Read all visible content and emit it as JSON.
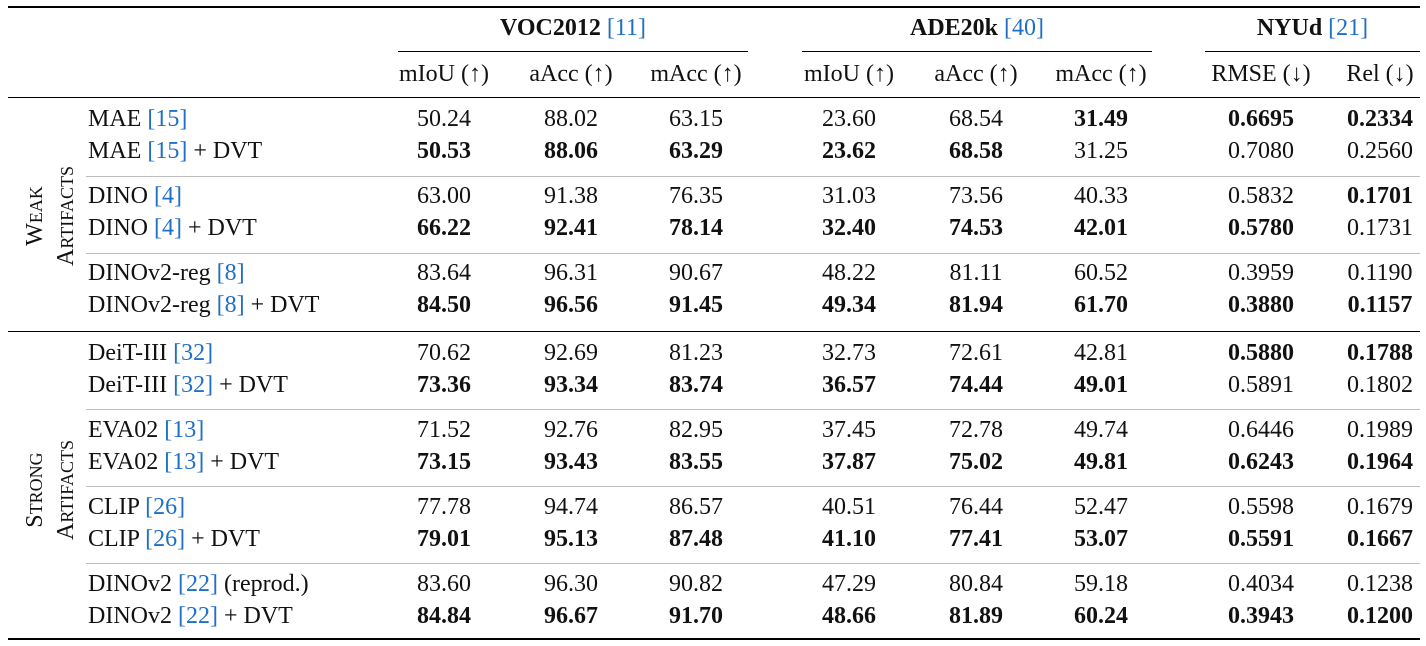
{
  "groups": [
    {
      "name": "VOC2012",
      "ref": "11"
    },
    {
      "name": "ADE20k",
      "ref": "40"
    },
    {
      "name": "NYUd",
      "ref": "21"
    }
  ],
  "columns": [
    "mIoU (↑)",
    "aAcc (↑)",
    "mAcc (↑)",
    "mIoU (↑)",
    "aAcc (↑)",
    "mAcc (↑)",
    "RMSE (↓)",
    "Rel (↓)"
  ],
  "categories": [
    {
      "first_cap": "W",
      "first_rest": "EAK",
      "second_cap": "A",
      "second_rest": "RTIFACTS"
    },
    {
      "first_cap": "S",
      "first_rest": "TRONG",
      "second_cap": "A",
      "second_rest": "RTIFACTS"
    }
  ],
  "rows": [
    {
      "name": "MAE ",
      "ref": "15",
      "suffix": "",
      "values": [
        "50.24",
        "88.02",
        "63.15",
        "23.60",
        "68.54",
        "31.49",
        "0.6695",
        "0.2334"
      ],
      "bold": [
        false,
        false,
        false,
        false,
        false,
        true,
        true,
        true
      ]
    },
    {
      "name": "MAE ",
      "ref": "15",
      "suffix": " + DVT",
      "values": [
        "50.53",
        "88.06",
        "63.29",
        "23.62",
        "68.58",
        "31.25",
        "0.7080",
        "0.2560"
      ],
      "bold": [
        true,
        true,
        true,
        true,
        true,
        false,
        false,
        false
      ]
    },
    {
      "name": "DINO ",
      "ref": "4",
      "suffix": "",
      "values": [
        "63.00",
        "91.38",
        "76.35",
        "31.03",
        "73.56",
        "40.33",
        "0.5832",
        "0.1701"
      ],
      "bold": [
        false,
        false,
        false,
        false,
        false,
        false,
        false,
        true
      ]
    },
    {
      "name": "DINO ",
      "ref": "4",
      "suffix": " + DVT",
      "values": [
        "66.22",
        "92.41",
        "78.14",
        "32.40",
        "74.53",
        "42.01",
        "0.5780",
        "0.1731"
      ],
      "bold": [
        true,
        true,
        true,
        true,
        true,
        true,
        true,
        false
      ]
    },
    {
      "name": "DINOv2-reg ",
      "ref": "8",
      "suffix": "",
      "values": [
        "83.64",
        "96.31",
        "90.67",
        "48.22",
        "81.11",
        "60.52",
        "0.3959",
        "0.1190"
      ],
      "bold": [
        false,
        false,
        false,
        false,
        false,
        false,
        false,
        false
      ]
    },
    {
      "name": "DINOv2-reg ",
      "ref": "8",
      "suffix": " + DVT",
      "values": [
        "84.50",
        "96.56",
        "91.45",
        "49.34",
        "81.94",
        "61.70",
        "0.3880",
        "0.1157"
      ],
      "bold": [
        true,
        true,
        true,
        true,
        true,
        true,
        true,
        true
      ]
    },
    {
      "name": "DeiT-III ",
      "ref": "32",
      "suffix": "",
      "values": [
        "70.62",
        "92.69",
        "81.23",
        "32.73",
        "72.61",
        "42.81",
        "0.5880",
        "0.1788"
      ],
      "bold": [
        false,
        false,
        false,
        false,
        false,
        false,
        true,
        true
      ]
    },
    {
      "name": "DeiT-III ",
      "ref": "32",
      "suffix": " + DVT",
      "values": [
        "73.36",
        "93.34",
        "83.74",
        "36.57",
        "74.44",
        "49.01",
        "0.5891",
        "0.1802"
      ],
      "bold": [
        true,
        true,
        true,
        true,
        true,
        true,
        false,
        false
      ]
    },
    {
      "name": "EVA02 ",
      "ref": "13",
      "suffix": "",
      "values": [
        "71.52",
        "92.76",
        "82.95",
        "37.45",
        "72.78",
        "49.74",
        "0.6446",
        "0.1989"
      ],
      "bold": [
        false,
        false,
        false,
        false,
        false,
        false,
        false,
        false
      ]
    },
    {
      "name": "EVA02 ",
      "ref": "13",
      "suffix": " + DVT",
      "values": [
        "73.15",
        "93.43",
        "83.55",
        "37.87",
        "75.02",
        "49.81",
        "0.6243",
        "0.1964"
      ],
      "bold": [
        true,
        true,
        true,
        true,
        true,
        true,
        true,
        true
      ]
    },
    {
      "name": "CLIP ",
      "ref": "26",
      "suffix": "",
      "values": [
        "77.78",
        "94.74",
        "86.57",
        "40.51",
        "76.44",
        "52.47",
        "0.5598",
        "0.1679"
      ],
      "bold": [
        false,
        false,
        false,
        false,
        false,
        false,
        false,
        false
      ]
    },
    {
      "name": "CLIP ",
      "ref": "26",
      "suffix": " + DVT",
      "values": [
        "79.01",
        "95.13",
        "87.48",
        "41.10",
        "77.41",
        "53.07",
        "0.5591",
        "0.1667"
      ],
      "bold": [
        true,
        true,
        true,
        true,
        true,
        true,
        true,
        true
      ]
    },
    {
      "name": "DINOv2 ",
      "ref": "22",
      "suffix": " (reprod.)",
      "values": [
        "83.60",
        "96.30",
        "90.82",
        "47.29",
        "80.84",
        "59.18",
        "0.4034",
        "0.1238"
      ],
      "bold": [
        false,
        false,
        false,
        false,
        false,
        false,
        false,
        false
      ]
    },
    {
      "name": "DINOv2 ",
      "ref": "22",
      "suffix": " + DVT",
      "values": [
        "84.84",
        "96.67",
        "91.70",
        "48.66",
        "81.89",
        "60.24",
        "0.3943",
        "0.1200"
      ],
      "bold": [
        true,
        true,
        true,
        true,
        true,
        true,
        true,
        true
      ]
    }
  ]
}
